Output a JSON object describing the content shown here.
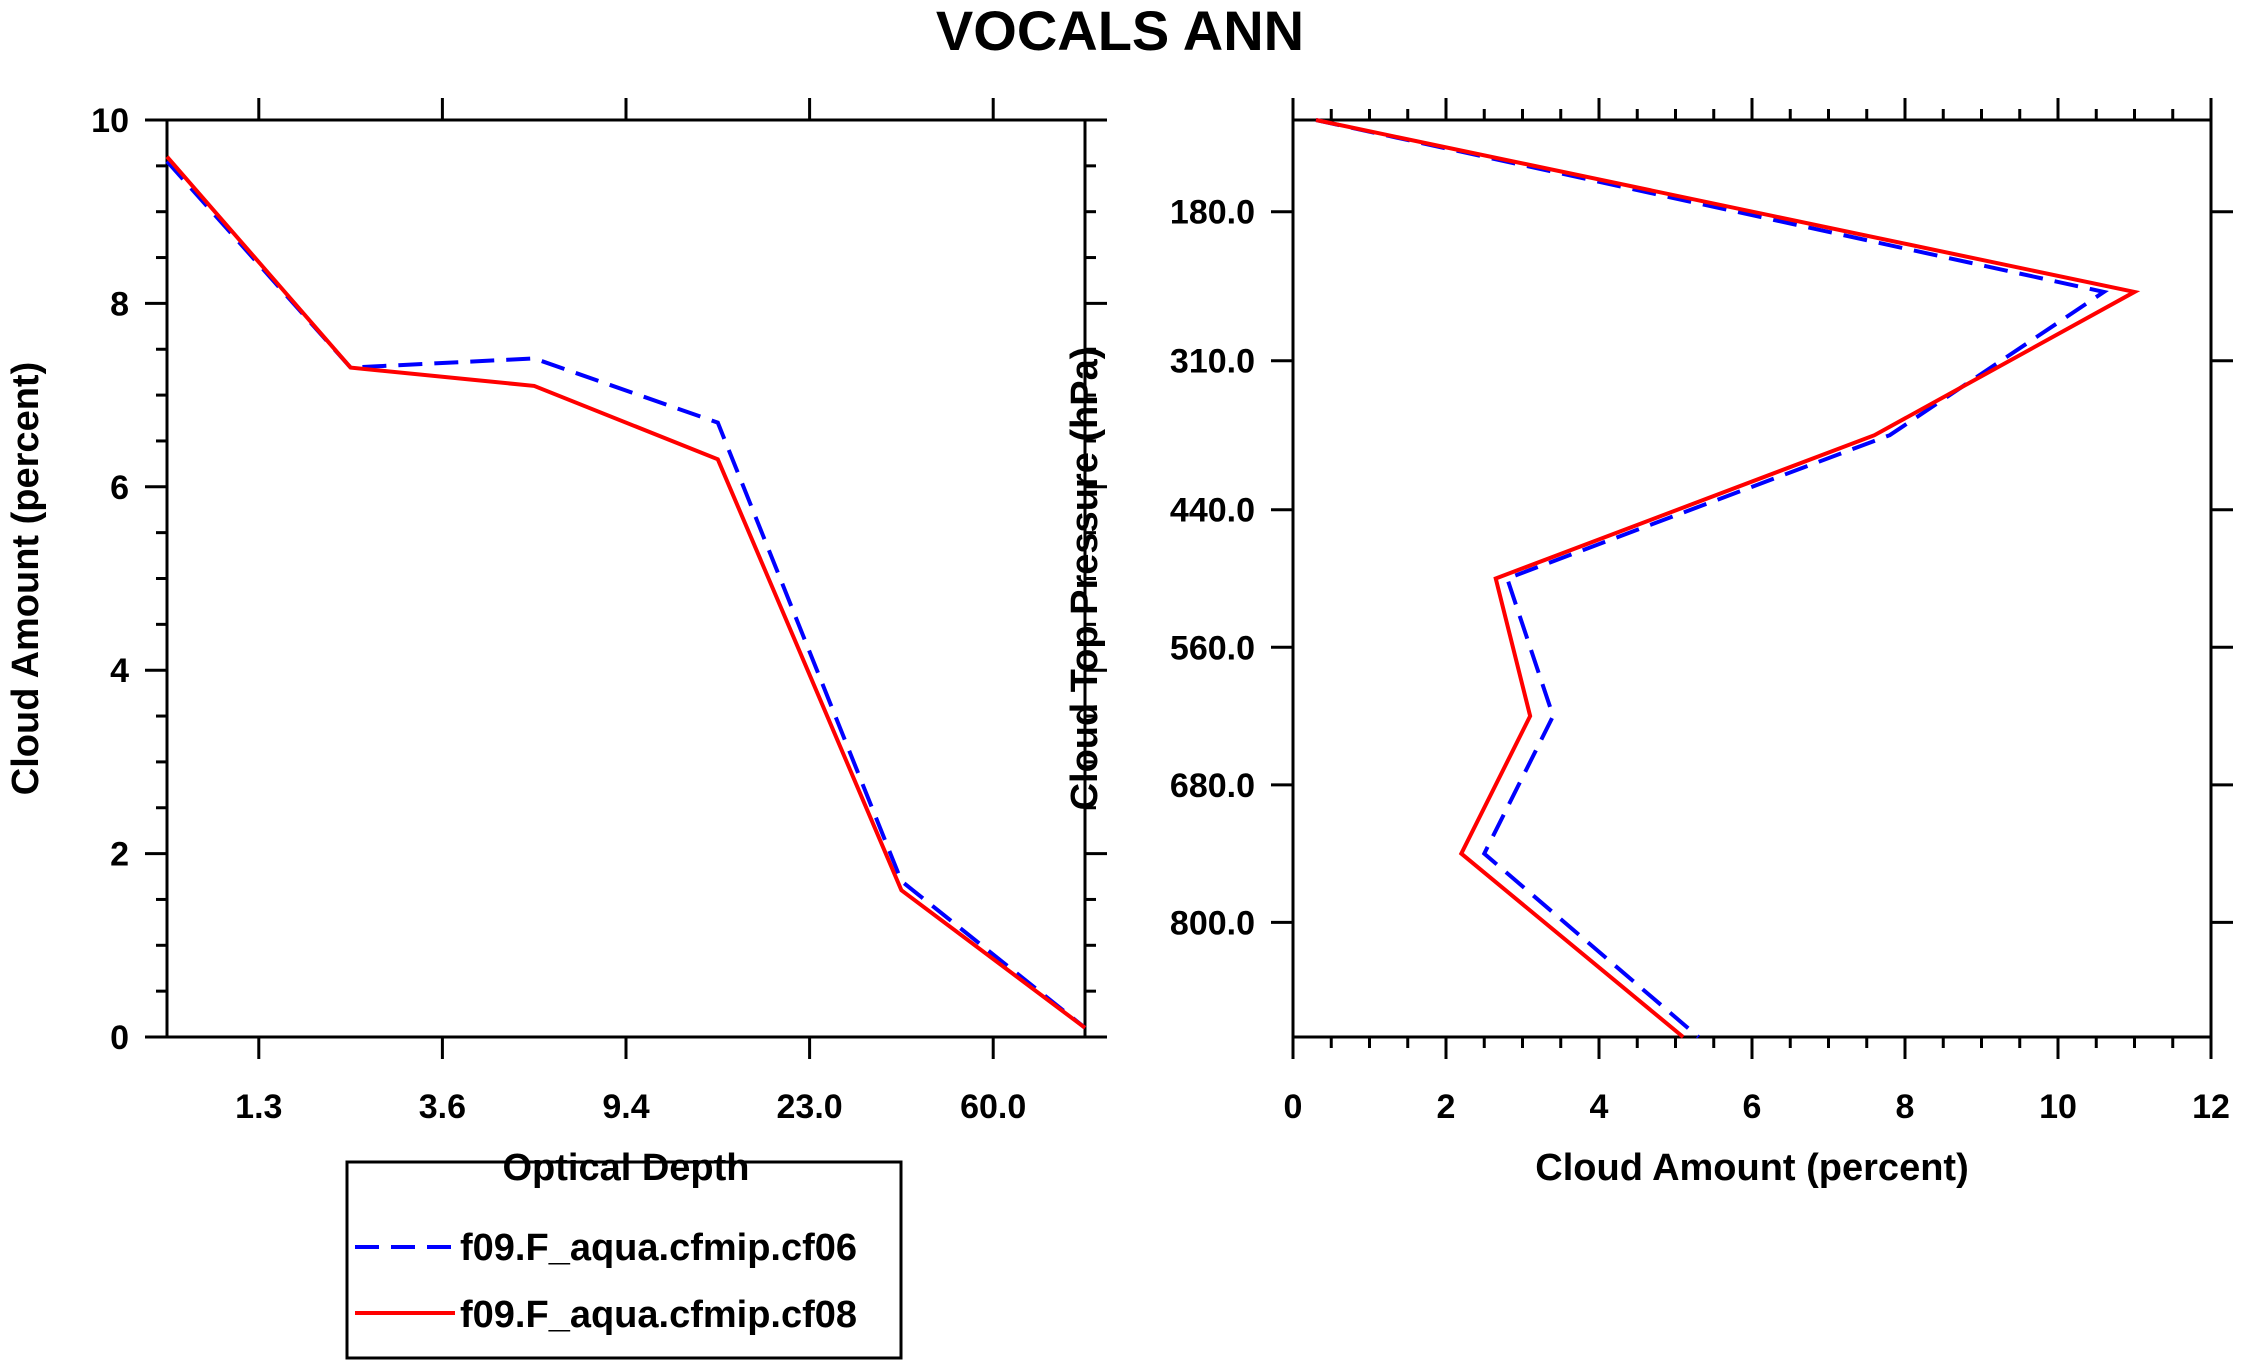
{
  "title": "VOCALS ANN",
  "colors": {
    "cf06": "#0000ff",
    "cf08": "#ff0000",
    "axis": "#000000"
  },
  "legend": {
    "entries": [
      {
        "label": "f09.F_aqua.cfmip.cf06",
        "color": "#0000ff",
        "style": "dashed"
      },
      {
        "label": "f09.F_aqua.cfmip.cf08",
        "color": "#ff0000",
        "style": "solid"
      }
    ]
  },
  "chart_data": [
    {
      "type": "line",
      "xlabel": "Optical Depth",
      "ylabel": "Cloud Amount (percent)",
      "ylim": [
        0,
        10
      ],
      "yticks": [
        0,
        2,
        4,
        6,
        8,
        10
      ],
      "xlim": [
        0,
        10
      ],
      "xticks": [
        {
          "value": 1,
          "label": "1.3"
        },
        {
          "value": 3,
          "label": "3.6"
        },
        {
          "value": 5,
          "label": "9.4"
        },
        {
          "value": 7,
          "label": "23.0"
        },
        {
          "value": 9,
          "label": "60.0"
        }
      ],
      "x": [
        0,
        2,
        4,
        6,
        8,
        10
      ],
      "series": [
        {
          "name": "f09.F_aqua.cfmip.cf06",
          "values": [
            9.55,
            7.3,
            7.4,
            6.7,
            1.7,
            0.1
          ]
        },
        {
          "name": "f09.F_aqua.cfmip.cf08",
          "values": [
            9.6,
            7.3,
            7.1,
            6.3,
            1.6,
            0.1
          ]
        }
      ]
    },
    {
      "type": "line",
      "xlabel": "Cloud Amount (percent)",
      "ylabel": "Cloud Top Pressure (hPa)",
      "xlim": [
        0,
        12
      ],
      "xticks": [
        0,
        2,
        4,
        6,
        8,
        10,
        12
      ],
      "ylim": [
        100,
        900
      ],
      "yreversed": true,
      "yticks": [
        180.0,
        310.0,
        440.0,
        560.0,
        680.0,
        800.0
      ],
      "ytick_labels": [
        "180.0",
        "310.0",
        "440.0",
        "560.0",
        "680.0",
        "800.0"
      ],
      "y": [
        100,
        250,
        375,
        500,
        620,
        740,
        900
      ],
      "series": [
        {
          "name": "f09.F_aqua.cfmip.cf06",
          "values": [
            0.3,
            10.6,
            7.8,
            2.8,
            3.4,
            2.5,
            5.3
          ]
        },
        {
          "name": "f09.F_aqua.cfmip.cf08",
          "values": [
            0.3,
            11.0,
            7.6,
            2.65,
            3.1,
            2.2,
            5.1
          ]
        }
      ]
    }
  ]
}
